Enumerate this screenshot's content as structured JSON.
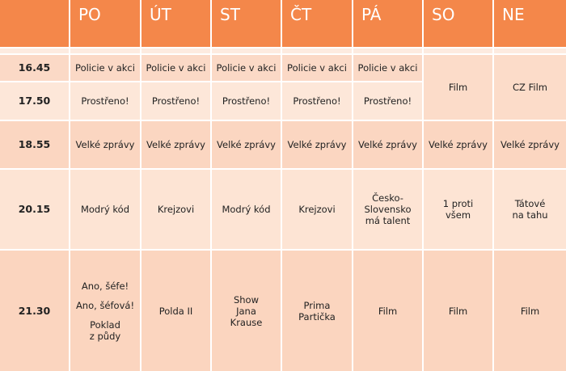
{
  "header": {
    "days": [
      "PO",
      "ÚT",
      "ST",
      "ČT",
      "PÁ",
      "SO",
      "NE"
    ]
  },
  "rows": [
    {
      "time": "16.45",
      "cells": [
        "Policie v akci",
        "Policie v akci",
        "Policie v akci",
        "Policie v akci",
        "Policie v akci",
        "Film",
        "CZ Film"
      ]
    },
    {
      "time": "17.50",
      "cells": [
        "Prostřeno!",
        "Prostřeno!",
        "Prostřeno!",
        "Prostřeno!",
        "Prostřeno!"
      ]
    },
    {
      "time": "18.55",
      "cells": [
        "Velké zprávy",
        "Velké zprávy",
        "Velké zprávy",
        "Velké zprávy",
        "Velké zprávy",
        "Velké zprávy",
        "Velké zprávy"
      ]
    },
    {
      "time": "20.15",
      "cells": [
        "Modrý kód",
        "Krejzovi",
        "Modrý kód",
        "Krejzovi",
        "Česko-\nSlovensko\nmá talent",
        "1 proti\nvšem",
        "Tátové\nna tahu"
      ]
    },
    {
      "time": "21.30",
      "cells": [
        [
          "Ano, šéfe!",
          "Ano, šéfová!",
          "Poklad\nz půdy"
        ],
        "Polda II",
        "Show\nJana\nKrause",
        "Prima\nPartička",
        "Film",
        "Film",
        "Film"
      ]
    }
  ]
}
